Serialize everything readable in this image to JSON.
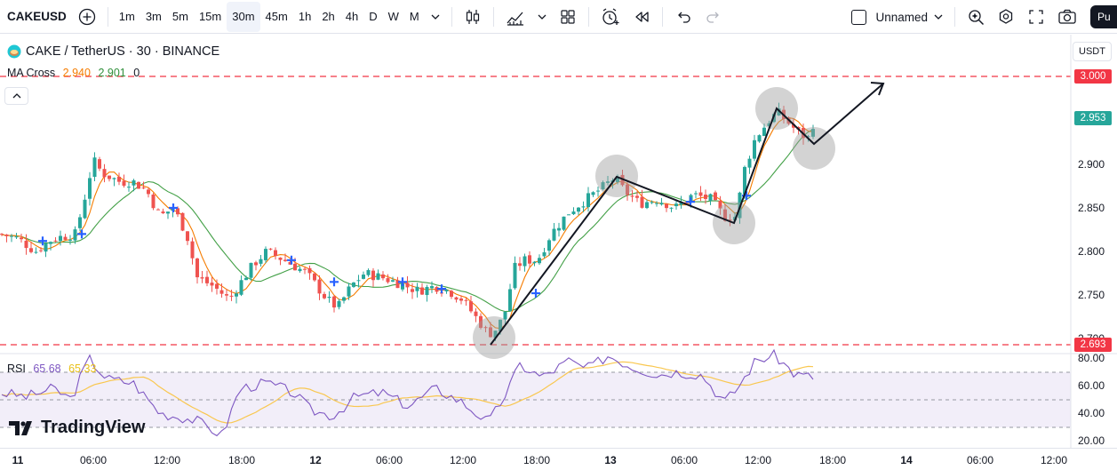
{
  "toolbar": {
    "symbol": "CAKEUSD",
    "intervals": [
      "1m",
      "3m",
      "5m",
      "15m",
      "30m",
      "45m",
      "1h",
      "2h",
      "4h",
      "D",
      "W",
      "M"
    ],
    "active_interval": "30m",
    "layout_name": "Unnamed",
    "publish_label": "Pu"
  },
  "legend": {
    "pair": "CAKE / TetherUS",
    "interval": "30",
    "exchange": "BINANCE",
    "title_separator": " · ",
    "ma_name": "MA Cross",
    "ma_fast": "2.940",
    "ma_slow": "2.901",
    "ma_zero": "0",
    "rsi_name": "RSI",
    "rsi_value": "65.68",
    "rsi_ma": "65.33"
  },
  "price_axis": {
    "currency": "USDT",
    "labels": [
      "2.900",
      "2.850",
      "2.800",
      "2.750",
      "2.700"
    ],
    "tags": {
      "resistance": "3.000",
      "current": "2.953",
      "support": "2.693"
    },
    "colors": {
      "resistance": "#f23645",
      "current": "#26a69a",
      "support": "#f23645"
    }
  },
  "rsi_axis": {
    "labels": [
      "80.00",
      "60.00",
      "40.00",
      "20.00"
    ]
  },
  "time_axis": {
    "labels": [
      "11",
      "06:00",
      "12:00",
      "18:00",
      "12",
      "06:00",
      "12:00",
      "18:00",
      "13",
      "06:00",
      "12:00",
      "18:00",
      "14",
      "06:00",
      "12:00"
    ],
    "bold": [
      "11",
      "12",
      "13",
      "14"
    ]
  },
  "brand": {
    "name": "TradingView"
  },
  "colors": {
    "up": "#26a69a",
    "down": "#ef5350",
    "ma_fast": "#f57c00",
    "ma_slow": "#43a047",
    "rsi": "#7e57c2",
    "rsi_ma": "#f9c74f"
  }
}
